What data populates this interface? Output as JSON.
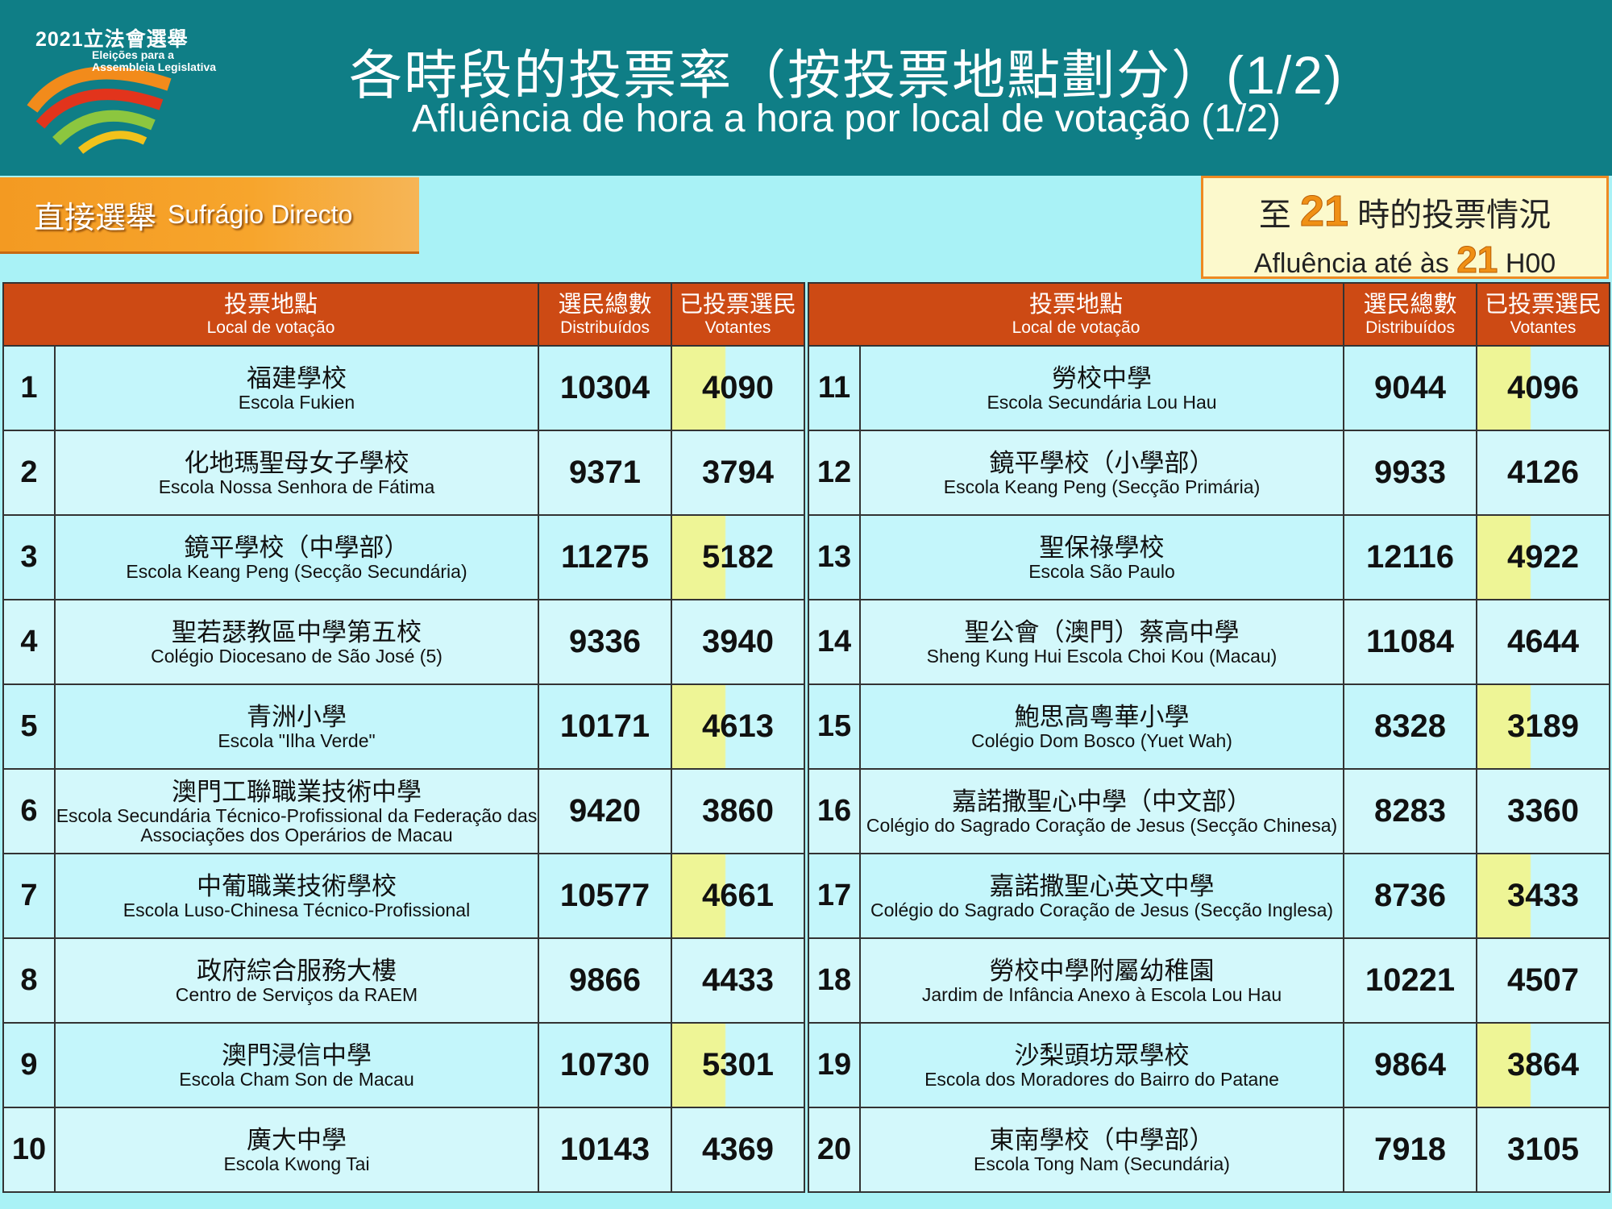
{
  "logo": {
    "title": "2021立法會選舉",
    "subtitle_line1": "Eleições para a",
    "subtitle_line2": "Assembleia Legislativa"
  },
  "header": {
    "title_zh": "各時段的投票率（按投票地點劃分）(1/2)",
    "title_pt": "Afluência de hora a hora por local de votação (1/2)"
  },
  "section": {
    "label_zh": "直接選舉",
    "label_pt": "Sufrágio Directo"
  },
  "status": {
    "line1_prefix": "至",
    "hour": "21",
    "line1_suffix": "時的投票情況",
    "line2_prefix": "Afluência até às",
    "line2_suffix": "H00"
  },
  "columns": {
    "location_zh": "投票地點",
    "location_pt": "Local de votação",
    "total_zh": "選民總數",
    "total_pt": "Distribuídos",
    "voted_zh": "已投票選民",
    "voted_pt": "Votantes"
  },
  "left_rows": [
    {
      "no": "1",
      "zh": "福建學校",
      "pt": "Escola Fukien",
      "total": "10304",
      "voted": "4090"
    },
    {
      "no": "2",
      "zh": "化地瑪聖母女子學校",
      "pt": "Escola Nossa Senhora de Fátima",
      "total": "9371",
      "voted": "3794"
    },
    {
      "no": "3",
      "zh": "鏡平學校（中學部）",
      "pt": "Escola Keang Peng (Secção Secundária)",
      "total": "11275",
      "voted": "5182"
    },
    {
      "no": "4",
      "zh": "聖若瑟教區中學第五校",
      "pt": "Colégio Diocesano de São José (5)",
      "total": "9336",
      "voted": "3940"
    },
    {
      "no": "5",
      "zh": "青洲小學",
      "pt": "Escola \"Ilha Verde\"",
      "total": "10171",
      "voted": "4613"
    },
    {
      "no": "6",
      "zh": "澳門工聯職業技術中學",
      "pt": "Escola Secundária Técnico-Profissional da Federação das Associações dos Operários de Macau",
      "total": "9420",
      "voted": "3860"
    },
    {
      "no": "7",
      "zh": "中葡職業技術學校",
      "pt": "Escola Luso-Chinesa Técnico-Profissional",
      "total": "10577",
      "voted": "4661"
    },
    {
      "no": "8",
      "zh": "政府綜合服務大樓",
      "pt": "Centro de Serviços da RAEM",
      "total": "9866",
      "voted": "4433"
    },
    {
      "no": "9",
      "zh": "澳門浸信中學",
      "pt": "Escola Cham Son de Macau",
      "total": "10730",
      "voted": "5301"
    },
    {
      "no": "10",
      "zh": "廣大中學",
      "pt": "Escola Kwong Tai",
      "total": "10143",
      "voted": "4369"
    }
  ],
  "right_rows": [
    {
      "no": "11",
      "zh": "勞校中學",
      "pt": "Escola Secundária Lou Hau",
      "total": "9044",
      "voted": "4096"
    },
    {
      "no": "12",
      "zh": "鏡平學校（小學部）",
      "pt": "Escola Keang Peng (Secção Primária)",
      "total": "9933",
      "voted": "4126"
    },
    {
      "no": "13",
      "zh": "聖保祿學校",
      "pt": "Escola São Paulo",
      "total": "12116",
      "voted": "4922"
    },
    {
      "no": "14",
      "zh": "聖公會（澳門）蔡高中學",
      "pt": "Sheng Kung Hui Escola Choi Kou (Macau)",
      "total": "11084",
      "voted": "4644"
    },
    {
      "no": "15",
      "zh": "鮑思高粵華小學",
      "pt": "Colégio Dom Bosco (Yuet Wah)",
      "total": "8328",
      "voted": "3189"
    },
    {
      "no": "16",
      "zh": "嘉諾撒聖心中學（中文部）",
      "pt": "Colégio do Sagrado Coração de Jesus (Secção Chinesa)",
      "total": "8283",
      "voted": "3360"
    },
    {
      "no": "17",
      "zh": "嘉諾撒聖心英文中學",
      "pt": "Colégio do Sagrado Coração de Jesus (Secção Inglesa)",
      "total": "8736",
      "voted": "3433"
    },
    {
      "no": "18",
      "zh": "勞校中學附屬幼稚園",
      "pt": "Jardim de Infância Anexo à Escola Lou Hau",
      "total": "10221",
      "voted": "4507"
    },
    {
      "no": "19",
      "zh": "沙梨頭坊眾學校",
      "pt": "Escola dos Moradores do Bairro do Patane",
      "total": "9864",
      "voted": "3864"
    },
    {
      "no": "20",
      "zh": "東南學校（中學部）",
      "pt": "Escola Tong Nam (Secundária)",
      "total": "7918",
      "voted": "3105"
    }
  ],
  "colors": {
    "header_bg": "#0f7e86",
    "page_bg": "#a9f2f6",
    "table_header": "#cd4a14",
    "accent_orange": "#f09015",
    "voted_highlight": "#eef596"
  }
}
